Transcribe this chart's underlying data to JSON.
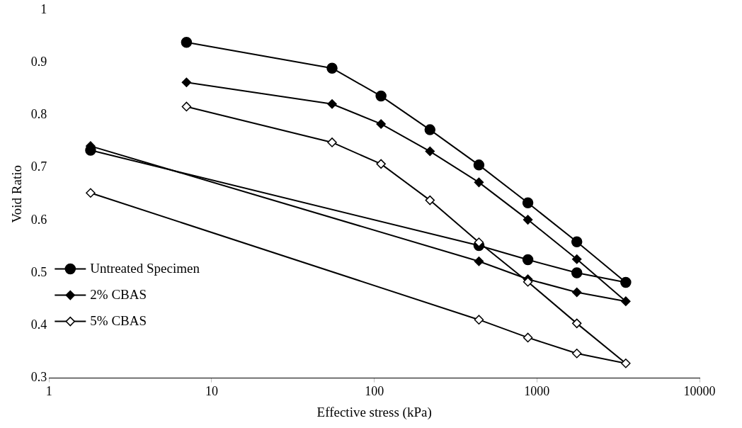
{
  "chart_data": {
    "type": "line",
    "xlabel": "Effective stress (kPa)",
    "ylabel": "Void Ratio",
    "log": "x",
    "grid": false,
    "legend": "bottom left",
    "line_style": "solid",
    "xlim": [
      1,
      10000
    ],
    "xticks": [
      1,
      10,
      100,
      1000,
      10000
    ],
    "ylim": [
      0.3,
      1
    ],
    "yticks": [
      0.3,
      0.4,
      0.5,
      0.6,
      0.7,
      0.8,
      0.9,
      1
    ],
    "series": [
      {
        "name": "Untreated Specimen",
        "color": "#000000",
        "marker": "circle",
        "x": [
          7,
          55,
          110,
          220,
          440,
          880,
          1760,
          3520,
          1760,
          880,
          440,
          1.8
        ],
        "values": [
          0.938,
          0.889,
          0.836,
          0.772,
          0.705,
          0.633,
          0.559,
          0.482,
          0.5,
          0.525,
          0.552,
          0.733
        ]
      },
      {
        "name": "2% CBAS",
        "color": "#000000",
        "marker": "diamond",
        "x": [
          7,
          55,
          110,
          220,
          440,
          880,
          1760,
          3520,
          1760,
          880,
          440,
          1.8
        ],
        "values": [
          0.862,
          0.821,
          0.783,
          0.731,
          0.672,
          0.601,
          0.526,
          0.446,
          0.463,
          0.488,
          0.522,
          0.741
        ]
      },
      {
        "name": "5% CBAS",
        "color": "#000000",
        "marker": "diamond",
        "colors": [
          "#ffffff",
          "#ffffff",
          "#ffffff",
          "#ffffff",
          "#ffffff",
          "#ffffff",
          "#ffffff",
          "#ffffff",
          "#ffffff",
          "#ffffff",
          "#ffffff",
          "#ffffff"
        ],
        "x": [
          7,
          55,
          110,
          220,
          440,
          880,
          1760,
          3520,
          1760,
          880,
          440,
          1.8
        ],
        "values": [
          0.816,
          0.748,
          0.707,
          0.638,
          0.558,
          0.483,
          0.404,
          0.328,
          0.347,
          0.377,
          0.411,
          0.652
        ]
      }
    ]
  }
}
